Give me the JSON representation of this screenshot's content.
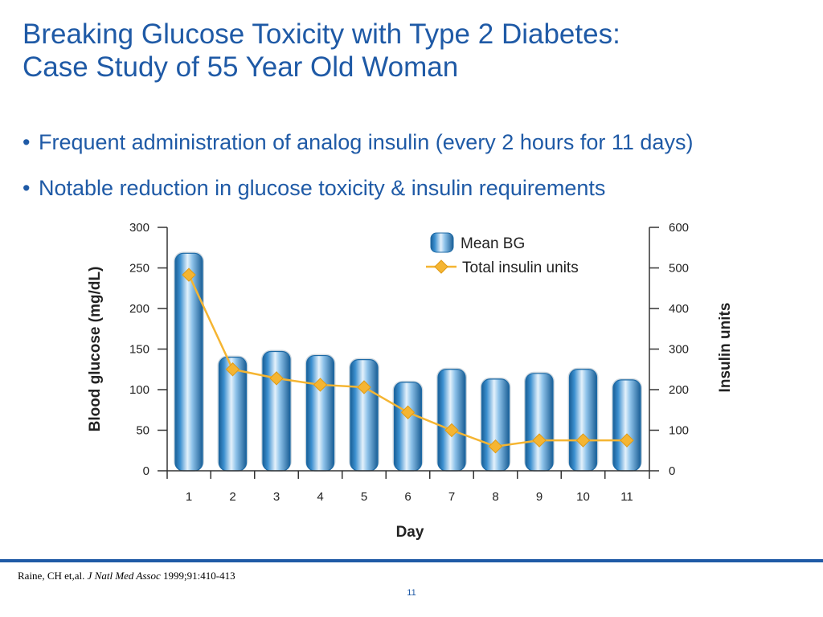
{
  "slide": {
    "title_line1": "Breaking Glucose Toxicity with Type 2 Diabetes:",
    "title_line2": "Case Study of 55 Year Old Woman",
    "bullets": [
      "Frequent administration of analog insulin (every 2 hours for 11 days)",
      "Notable reduction in glucose toxicity & insulin requirements"
    ],
    "bullet_glyph": "•",
    "citation": {
      "authors": "Raine, CH et,al. ",
      "journal": "J Natl Med Assoc",
      "details": " 1999;91:410-413"
    },
    "page_number": "11"
  },
  "colors": {
    "title": "#1f5aa6",
    "footer_rule": "#1f5aa6",
    "bar": "#2a7fc0",
    "line": "#f5b532"
  },
  "chart_data": {
    "type": "bar",
    "categories": [
      "1",
      "2",
      "3",
      "4",
      "5",
      "6",
      "7",
      "8",
      "9",
      "10",
      "11"
    ],
    "xlabel": "Day",
    "series": [
      {
        "name": "Mean BG",
        "type": "bar",
        "axis": "left",
        "values": [
          268,
          140,
          147,
          142,
          137,
          109,
          125,
          113,
          120,
          125,
          112
        ]
      },
      {
        "name": "Total insulin units",
        "type": "line",
        "axis": "right",
        "marker": "diamond",
        "values": [
          483,
          250,
          228,
          212,
          206,
          144,
          100,
          60,
          75,
          75,
          75
        ]
      }
    ],
    "y_left": {
      "label": "Blood glucose (mg/dL)",
      "ylim": [
        0,
        300
      ],
      "ticks": [
        0,
        50,
        100,
        150,
        200,
        250,
        300
      ]
    },
    "y_right": {
      "label": "Insulin units",
      "ylim": [
        0,
        600
      ],
      "ticks": [
        0,
        100,
        200,
        300,
        400,
        500,
        600
      ]
    },
    "legend_position": "top-right",
    "grid": false
  }
}
